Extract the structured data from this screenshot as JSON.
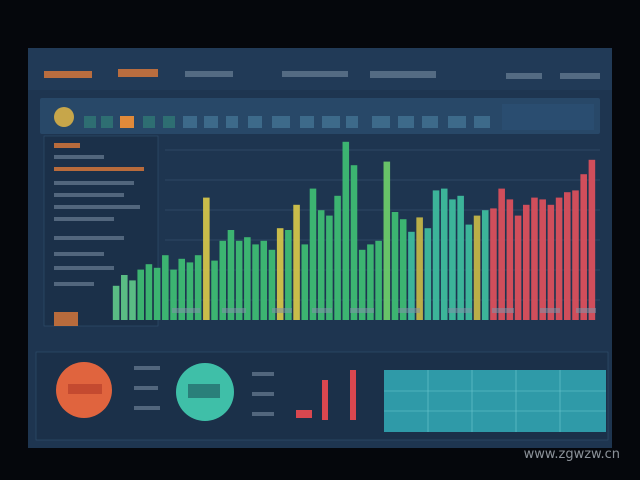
{
  "chart_data": {
    "type": "bar",
    "values": [
      19,
      25,
      22,
      28,
      31,
      29,
      36,
      28,
      34,
      32,
      36,
      68,
      33,
      44,
      50,
      44,
      46,
      42,
      44,
      39,
      51,
      50,
      64,
      42,
      73,
      61,
      58,
      69,
      99,
      86,
      39,
      42,
      44,
      88,
      60,
      56,
      49,
      57,
      51,
      72,
      73,
      67,
      69,
      53,
      58,
      61,
      62,
      73,
      67,
      58,
      64,
      68,
      67,
      64,
      68,
      71,
      72,
      81,
      89
    ],
    "colors": [
      "#5fc98a",
      "#5fc98a",
      "#5fc98a",
      "#3fbf74",
      "#3fbf74",
      "#3fbf74",
      "#3fbf74",
      "#3fbf74",
      "#3fbf74",
      "#3fbf74",
      "#3fbf74",
      "#d8c84a",
      "#3fbf74",
      "#3fbf74",
      "#3fbf74",
      "#3fbf74",
      "#3fbf74",
      "#3fbf74",
      "#3fbf74",
      "#3fbf74",
      "#d8c84a",
      "#3fbf74",
      "#d8c84a",
      "#3fbf74",
      "#3fbf74",
      "#3fbf74",
      "#3fbf74",
      "#3fbf74",
      "#3fbf74",
      "#3fbf74",
      "#3fbf74",
      "#3fbf74",
      "#3fbf74",
      "#6fcf6a",
      "#3fbf74",
      "#3fbf74",
      "#3fbfa0",
      "#c8b848",
      "#3fbfa0",
      "#3fbfa0",
      "#3fbfa0",
      "#3fbfa0",
      "#3fbfa0",
      "#3fbfa0",
      "#c8b848",
      "#3fbfa0",
      "#e0505c",
      "#e0505c",
      "#e0505c",
      "#e0505c",
      "#e0505c",
      "#e0505c",
      "#e0505c",
      "#e0505c",
      "#e0505c",
      "#e0505c",
      "#e0505c",
      "#e0505c",
      "#e0505c"
    ],
    "ylim": [
      0,
      100
    ]
  },
  "watermark": "www.zgwzw.cn"
}
